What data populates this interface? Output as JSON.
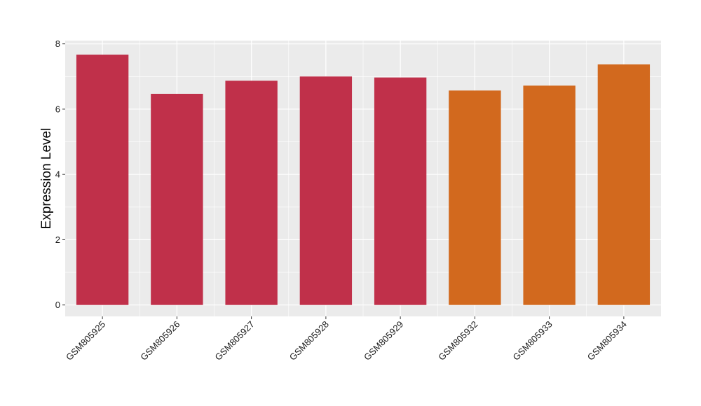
{
  "chart_data": {
    "type": "bar",
    "title": "",
    "xlabel": "",
    "ylabel": "Expression Level",
    "ylim": [
      -0.35,
      8.1
    ],
    "yticks": [
      0,
      2,
      4,
      6,
      8
    ],
    "grid": true,
    "legend": "none",
    "categories": [
      "GSM805925",
      "GSM805926",
      "GSM805927",
      "GSM805928",
      "GSM805929",
      "GSM805932",
      "GSM805933",
      "GSM805934"
    ],
    "values": [
      7.67,
      6.47,
      6.87,
      7.0,
      6.97,
      6.57,
      6.72,
      7.37
    ],
    "bar_colors": [
      "#c0304a",
      "#c0304a",
      "#c0304a",
      "#c0304a",
      "#c0304a",
      "#d2691e",
      "#d2691e",
      "#d2691e"
    ],
    "panel_background": "#ebebeb",
    "grid_color": "#ffffff"
  }
}
